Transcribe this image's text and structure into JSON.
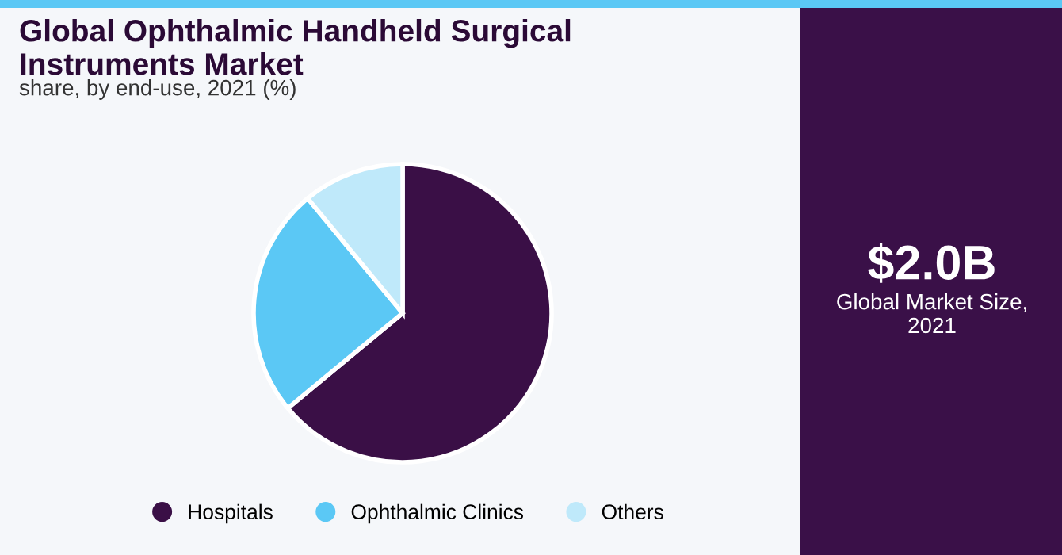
{
  "chart_data": {
    "type": "pie",
    "title": "Global Ophthalmic Handheld Surgical\nInstruments Market",
    "subtitle": "share, by end-use, 2021 (%)",
    "categories": [
      "Hospitals",
      "Ophthalmic Clinics",
      "Others"
    ],
    "values": [
      64,
      25,
      11
    ],
    "colors": [
      "#3a0f46",
      "#5bc8f5",
      "#bfe9fa"
    ],
    "legend": "bottom",
    "annotations": [
      "$2.0B",
      "Global Market Size,\n2021"
    ]
  }
}
